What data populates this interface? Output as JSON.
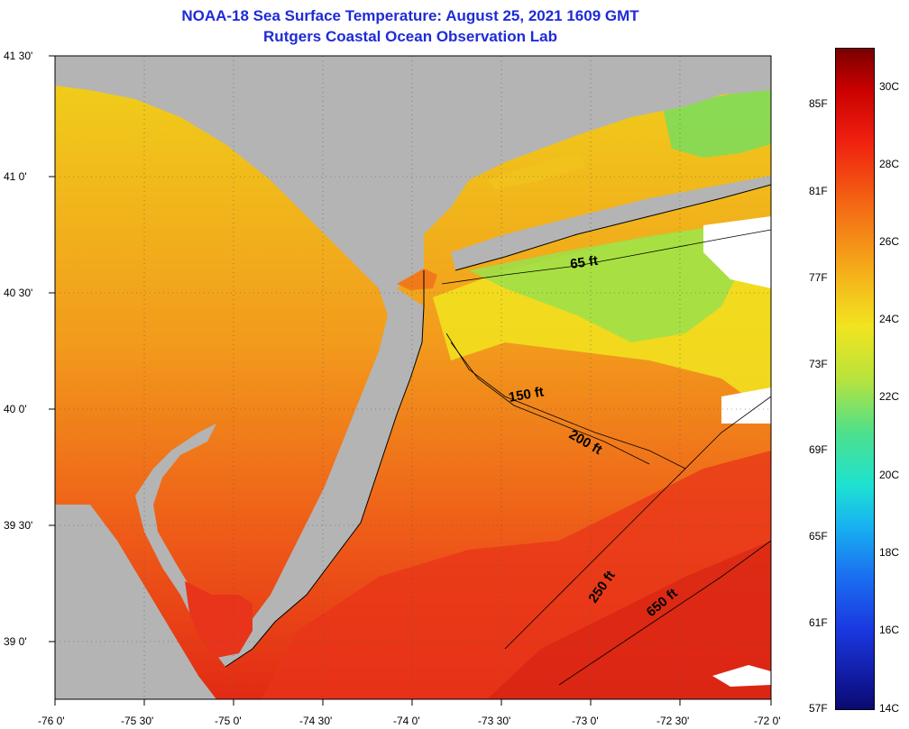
{
  "title_line1": "NOAA-18 Sea Surface Temperature:  August 25, 2021 1609 GMT",
  "title_line2": "Rutgers Coastal Ocean Observation Lab",
  "lat_ticks": [
    "41 30'",
    "41 0'",
    "40 30'",
    "40 0'",
    "39 30'",
    "39 0'"
  ],
  "lon_ticks": [
    "-76 0'",
    "-75 30'",
    "-75 0'",
    "-74 30'",
    "-74 0'",
    "-73 30'",
    "-73 0'",
    "-72 30'",
    "-72 0'"
  ],
  "isobaths": [
    "65 ft",
    "150 ft",
    "200 ft",
    "250 ft",
    "650 ft"
  ],
  "colorbar": {
    "fahrenheit": [
      "85F",
      "81F",
      "77F",
      "73F",
      "69F",
      "65F",
      "61F",
      "57F"
    ],
    "celsius": [
      "30C",
      "28C",
      "26C",
      "24C",
      "22C",
      "20C",
      "18C",
      "16C",
      "14C"
    ],
    "min_c": 14,
    "max_c": 31
  },
  "colors": {
    "land": "#b4b4b4",
    "cloud": "#ffffff",
    "title": "#1f2bd6",
    "warm": "#e8341a",
    "orange": "#f07a1a",
    "yellow": "#f2e41f",
    "green": "#9be04a"
  }
}
